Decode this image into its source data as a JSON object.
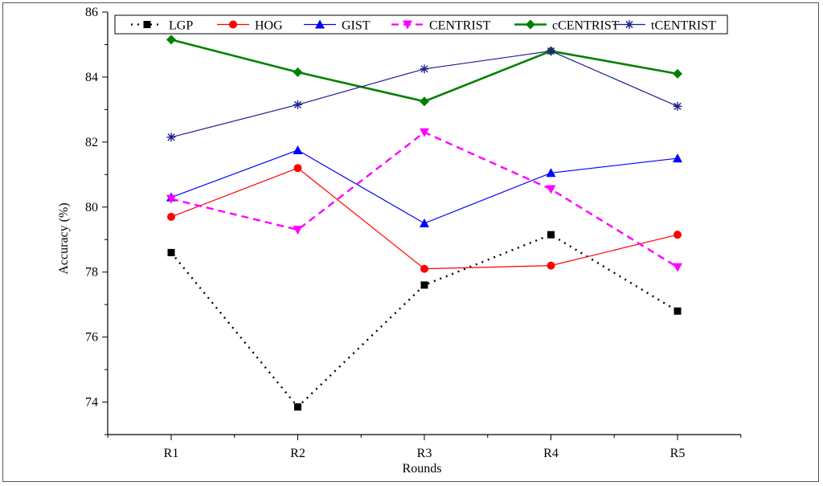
{
  "chart_data": {
    "type": "line",
    "title": "",
    "xlabel": "Rounds",
    "ylabel": "Accuracy (%)",
    "categories": [
      "R1",
      "R2",
      "R3",
      "R4",
      "R5"
    ],
    "ylim": [
      73,
      86
    ],
    "yticks": [
      74,
      76,
      78,
      80,
      82,
      84,
      86
    ],
    "grid": false,
    "legend_position": "top",
    "series": [
      {
        "name": "LGP",
        "values": [
          78.6,
          73.85,
          77.6,
          79.15,
          76.8
        ],
        "color": "#000000",
        "marker": "square",
        "line": "dotted"
      },
      {
        "name": "HOG",
        "values": [
          79.7,
          81.2,
          78.1,
          78.2,
          79.15
        ],
        "color": "#ff0000",
        "marker": "circle",
        "line": "solid"
      },
      {
        "name": "GIST",
        "values": [
          80.3,
          81.75,
          79.5,
          81.05,
          81.5
        ],
        "color": "#0000ff",
        "marker": "triangle-up",
        "line": "solid"
      },
      {
        "name": "CENTRIST",
        "values": [
          80.25,
          79.3,
          82.3,
          80.55,
          78.15
        ],
        "color": "#ff00ff",
        "marker": "triangle-down",
        "line": "dashed"
      },
      {
        "name": "cCENTRIST",
        "values": [
          85.15,
          84.15,
          83.25,
          84.8,
          84.1
        ],
        "color": "#008000",
        "marker": "diamond",
        "line": "solid"
      },
      {
        "name": "tCENTRIST",
        "values": [
          82.15,
          83.15,
          84.25,
          84.8,
          83.1
        ],
        "color": "#1f1f8f",
        "marker": "star",
        "line": "solid"
      }
    ]
  }
}
